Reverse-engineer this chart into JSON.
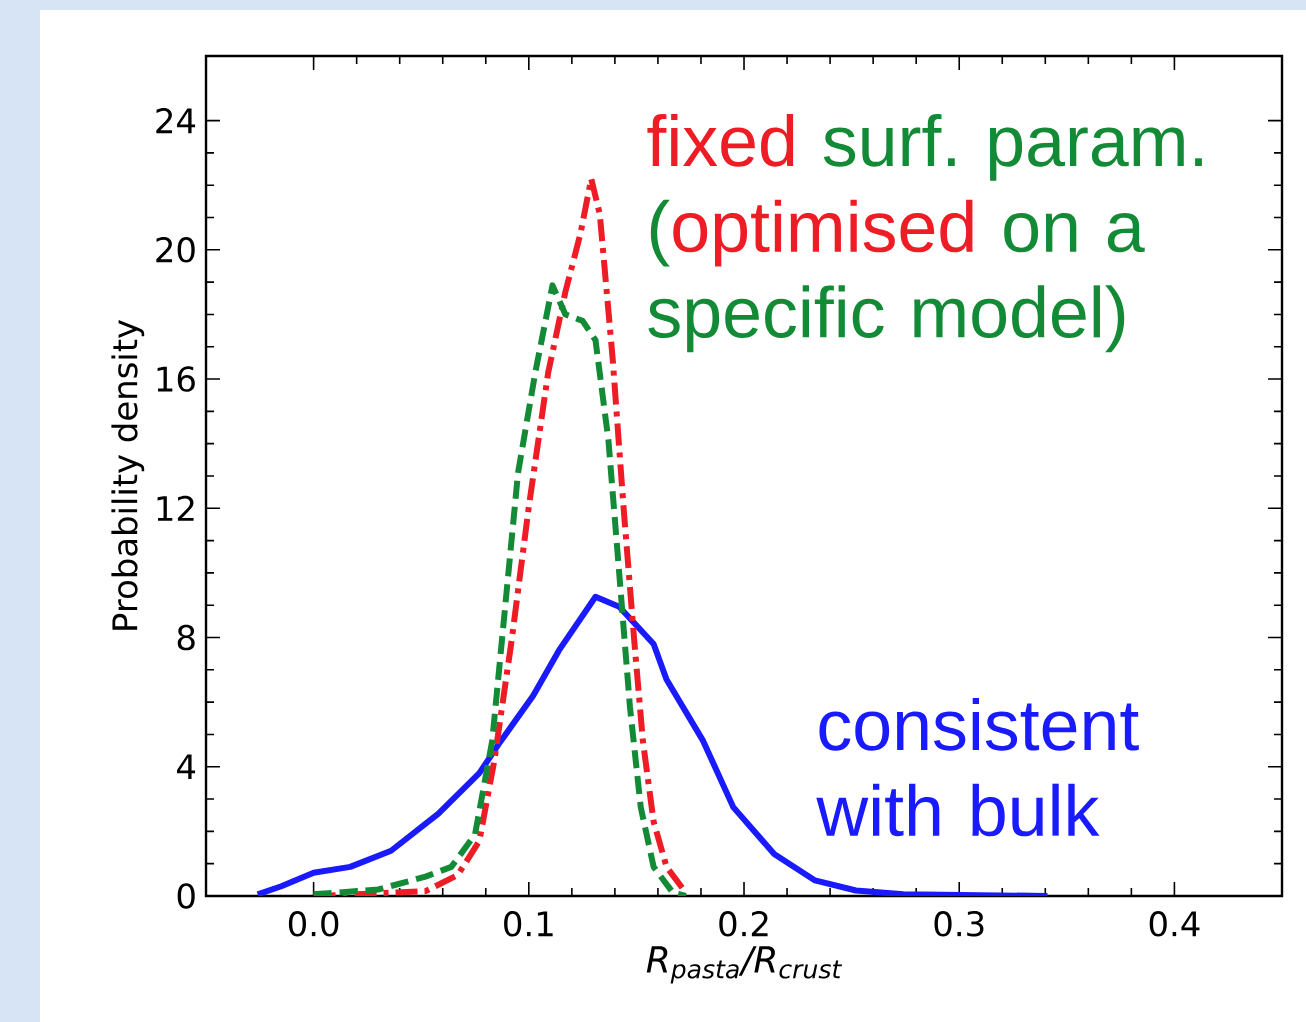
{
  "chart_data": {
    "type": "line",
    "xlabel": "R$_{pasta}$/R$_{crust}$",
    "ylabel": "Probability density",
    "xlim": [
      -0.05,
      0.45
    ],
    "ylim": [
      0,
      26
    ],
    "xticks": [
      {
        "value": 0,
        "label": "0.0"
      },
      0.1,
      0.2,
      0.3,
      0.4
    ],
    "yticks": [
      0,
      4,
      8,
      12,
      16,
      20,
      24
    ],
    "grid": false,
    "marker": "none",
    "annotations": [
      "fixed",
      "surf. param.",
      "(",
      "optimised",
      "on a",
      "specific model)",
      "consistent with bulk"
    ],
    "series": [
      {
        "color": "#1a1aff",
        "line_style": "solid",
        "x": [
          -0.026,
          -0.015,
          0.0,
          0.017,
          0.036,
          0.058,
          0.077,
          0.086,
          0.102,
          0.114,
          0.131,
          0.142,
          0.158,
          0.164,
          0.181,
          0.195,
          0.214,
          0.233,
          0.252,
          0.274,
          0.341
        ],
        "values": [
          0.05,
          0.3,
          0.72,
          0.9,
          1.4,
          2.55,
          3.8,
          4.7,
          6.2,
          7.6,
          9.26,
          8.95,
          7.8,
          6.7,
          4.8,
          2.75,
          1.3,
          0.48,
          0.17,
          0.05,
          0.0
        ]
      },
      {
        "color": "#ee1c25",
        "line_style": "dashdot",
        "x": [
          0.0,
          0.02,
          0.052,
          0.067,
          0.077,
          0.084,
          0.092,
          0.1,
          0.109,
          0.117,
          0.124,
          0.129,
          0.133,
          0.139,
          0.144,
          0.149,
          0.153,
          0.158,
          0.164,
          0.173
        ],
        "values": [
          0.0,
          0.05,
          0.15,
          0.65,
          1.7,
          4.2,
          7.9,
          12.05,
          16.2,
          18.7,
          20.5,
          22.2,
          21.1,
          16.6,
          12.05,
          7.9,
          4.8,
          2.3,
          0.9,
          0.1
        ]
      },
      {
        "color": "#138a36",
        "line_style": "dashed",
        "x": [
          0.0,
          0.03,
          0.052,
          0.064,
          0.075,
          0.083,
          0.089,
          0.095,
          0.103,
          0.111,
          0.117,
          0.125,
          0.131,
          0.137,
          0.142,
          0.147,
          0.152,
          0.158,
          0.167,
          0.173
        ],
        "values": [
          0.05,
          0.2,
          0.6,
          0.9,
          1.9,
          4.8,
          8.95,
          13.1,
          16.2,
          18.9,
          18.0,
          17.8,
          17.2,
          14.1,
          10.0,
          5.85,
          2.75,
          0.9,
          0.1,
          0.0
        ]
      }
    ]
  }
}
